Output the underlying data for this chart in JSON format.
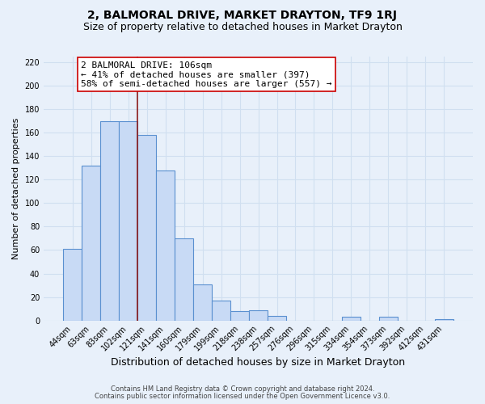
{
  "title": "2, BALMORAL DRIVE, MARKET DRAYTON, TF9 1RJ",
  "subtitle": "Size of property relative to detached houses in Market Drayton",
  "xlabel": "Distribution of detached houses by size in Market Drayton",
  "ylabel": "Number of detached properties",
  "footer_line1": "Contains HM Land Registry data © Crown copyright and database right 2024.",
  "footer_line2": "Contains public sector information licensed under the Open Government Licence v3.0.",
  "bar_labels": [
    "44sqm",
    "63sqm",
    "83sqm",
    "102sqm",
    "121sqm",
    "141sqm",
    "160sqm",
    "179sqm",
    "199sqm",
    "218sqm",
    "238sqm",
    "257sqm",
    "276sqm",
    "296sqm",
    "315sqm",
    "334sqm",
    "354sqm",
    "373sqm",
    "392sqm",
    "412sqm",
    "431sqm"
  ],
  "bar_values": [
    61,
    132,
    170,
    170,
    158,
    128,
    70,
    31,
    17,
    8,
    9,
    4,
    0,
    0,
    0,
    3,
    0,
    3,
    0,
    0,
    1
  ],
  "bar_color": "#c8daf5",
  "bar_edge_color": "#5a90d0",
  "grid_color": "#d0dff0",
  "background_color": "#e8f0fa",
  "vline_x": 3.5,
  "vline_color": "#8b1a1a",
  "annotation_text": "2 BALMORAL DRIVE: 106sqm\n← 41% of detached houses are smaller (397)\n58% of semi-detached houses are larger (557) →",
  "annotation_box_color": "#ffffff",
  "annotation_box_edge": "#cc0000",
  "ylim": [
    0,
    225
  ],
  "yticks": [
    0,
    20,
    40,
    60,
    80,
    100,
    120,
    140,
    160,
    180,
    200,
    220
  ],
  "title_fontsize": 10,
  "subtitle_fontsize": 9,
  "xlabel_fontsize": 9,
  "ylabel_fontsize": 8,
  "tick_fontsize": 7,
  "annotation_fontsize": 8,
  "footer_fontsize": 6
}
